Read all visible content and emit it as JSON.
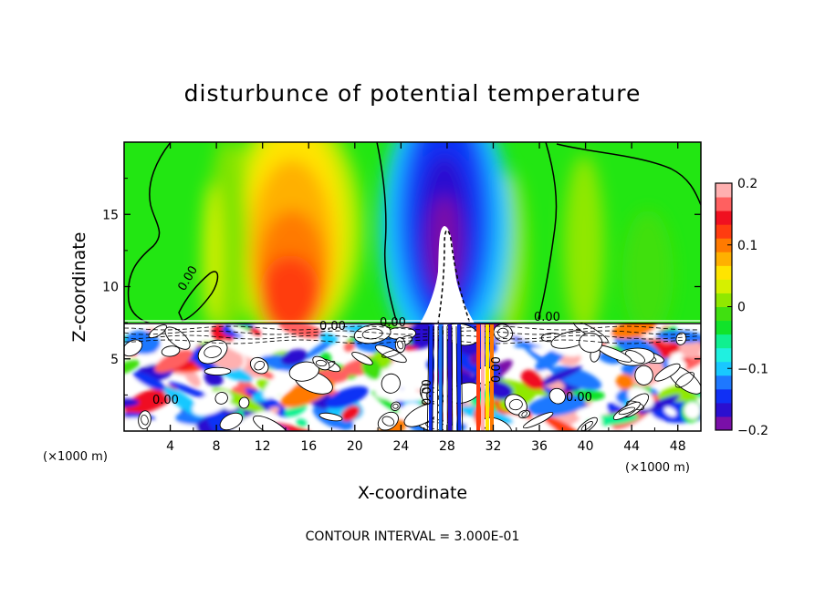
{
  "chart_data": {
    "type": "heatmap",
    "title": "disturbunce of potential temperature",
    "xlabel": "X-coordinate",
    "ylabel": "Z-coordinate",
    "x_unit": "(×1000 m)",
    "z_unit": "(×1000 m)",
    "xlim": [
      0,
      50
    ],
    "ylim": [
      0,
      20
    ],
    "x_ticks": [
      4,
      8,
      12,
      16,
      20,
      24,
      28,
      32,
      36,
      40,
      44,
      48
    ],
    "y_ticks": [
      5,
      10,
      15
    ],
    "colorbar": {
      "range": [
        -0.2,
        0.2
      ],
      "tick_labels": [
        "0.2",
        "0.1",
        "0",
        "−0.1",
        "−0.2"
      ],
      "tick_values": [
        0.2,
        0.1,
        0,
        -0.1,
        -0.2
      ],
      "colors": [
        "#7a0fa8",
        "#2a0fd0",
        "#1030f5",
        "#1e78ff",
        "#19c8ff",
        "#20f0e0",
        "#10f090",
        "#11e32a",
        "#40e010",
        "#90e800",
        "#d6f000",
        "#ffe400",
        "#ffb000",
        "#ff7a00",
        "#ff3c10",
        "#f01020",
        "#ff6060",
        "#ffb0b0"
      ]
    },
    "contour_labels": [
      "0.00",
      "0.00",
      "0.00",
      "0.00",
      "0.00",
      "0.00",
      "0.00",
      "0.00"
    ],
    "contour_interval_text": "CONTOUR INTERVAL = 3.000E-01"
  }
}
